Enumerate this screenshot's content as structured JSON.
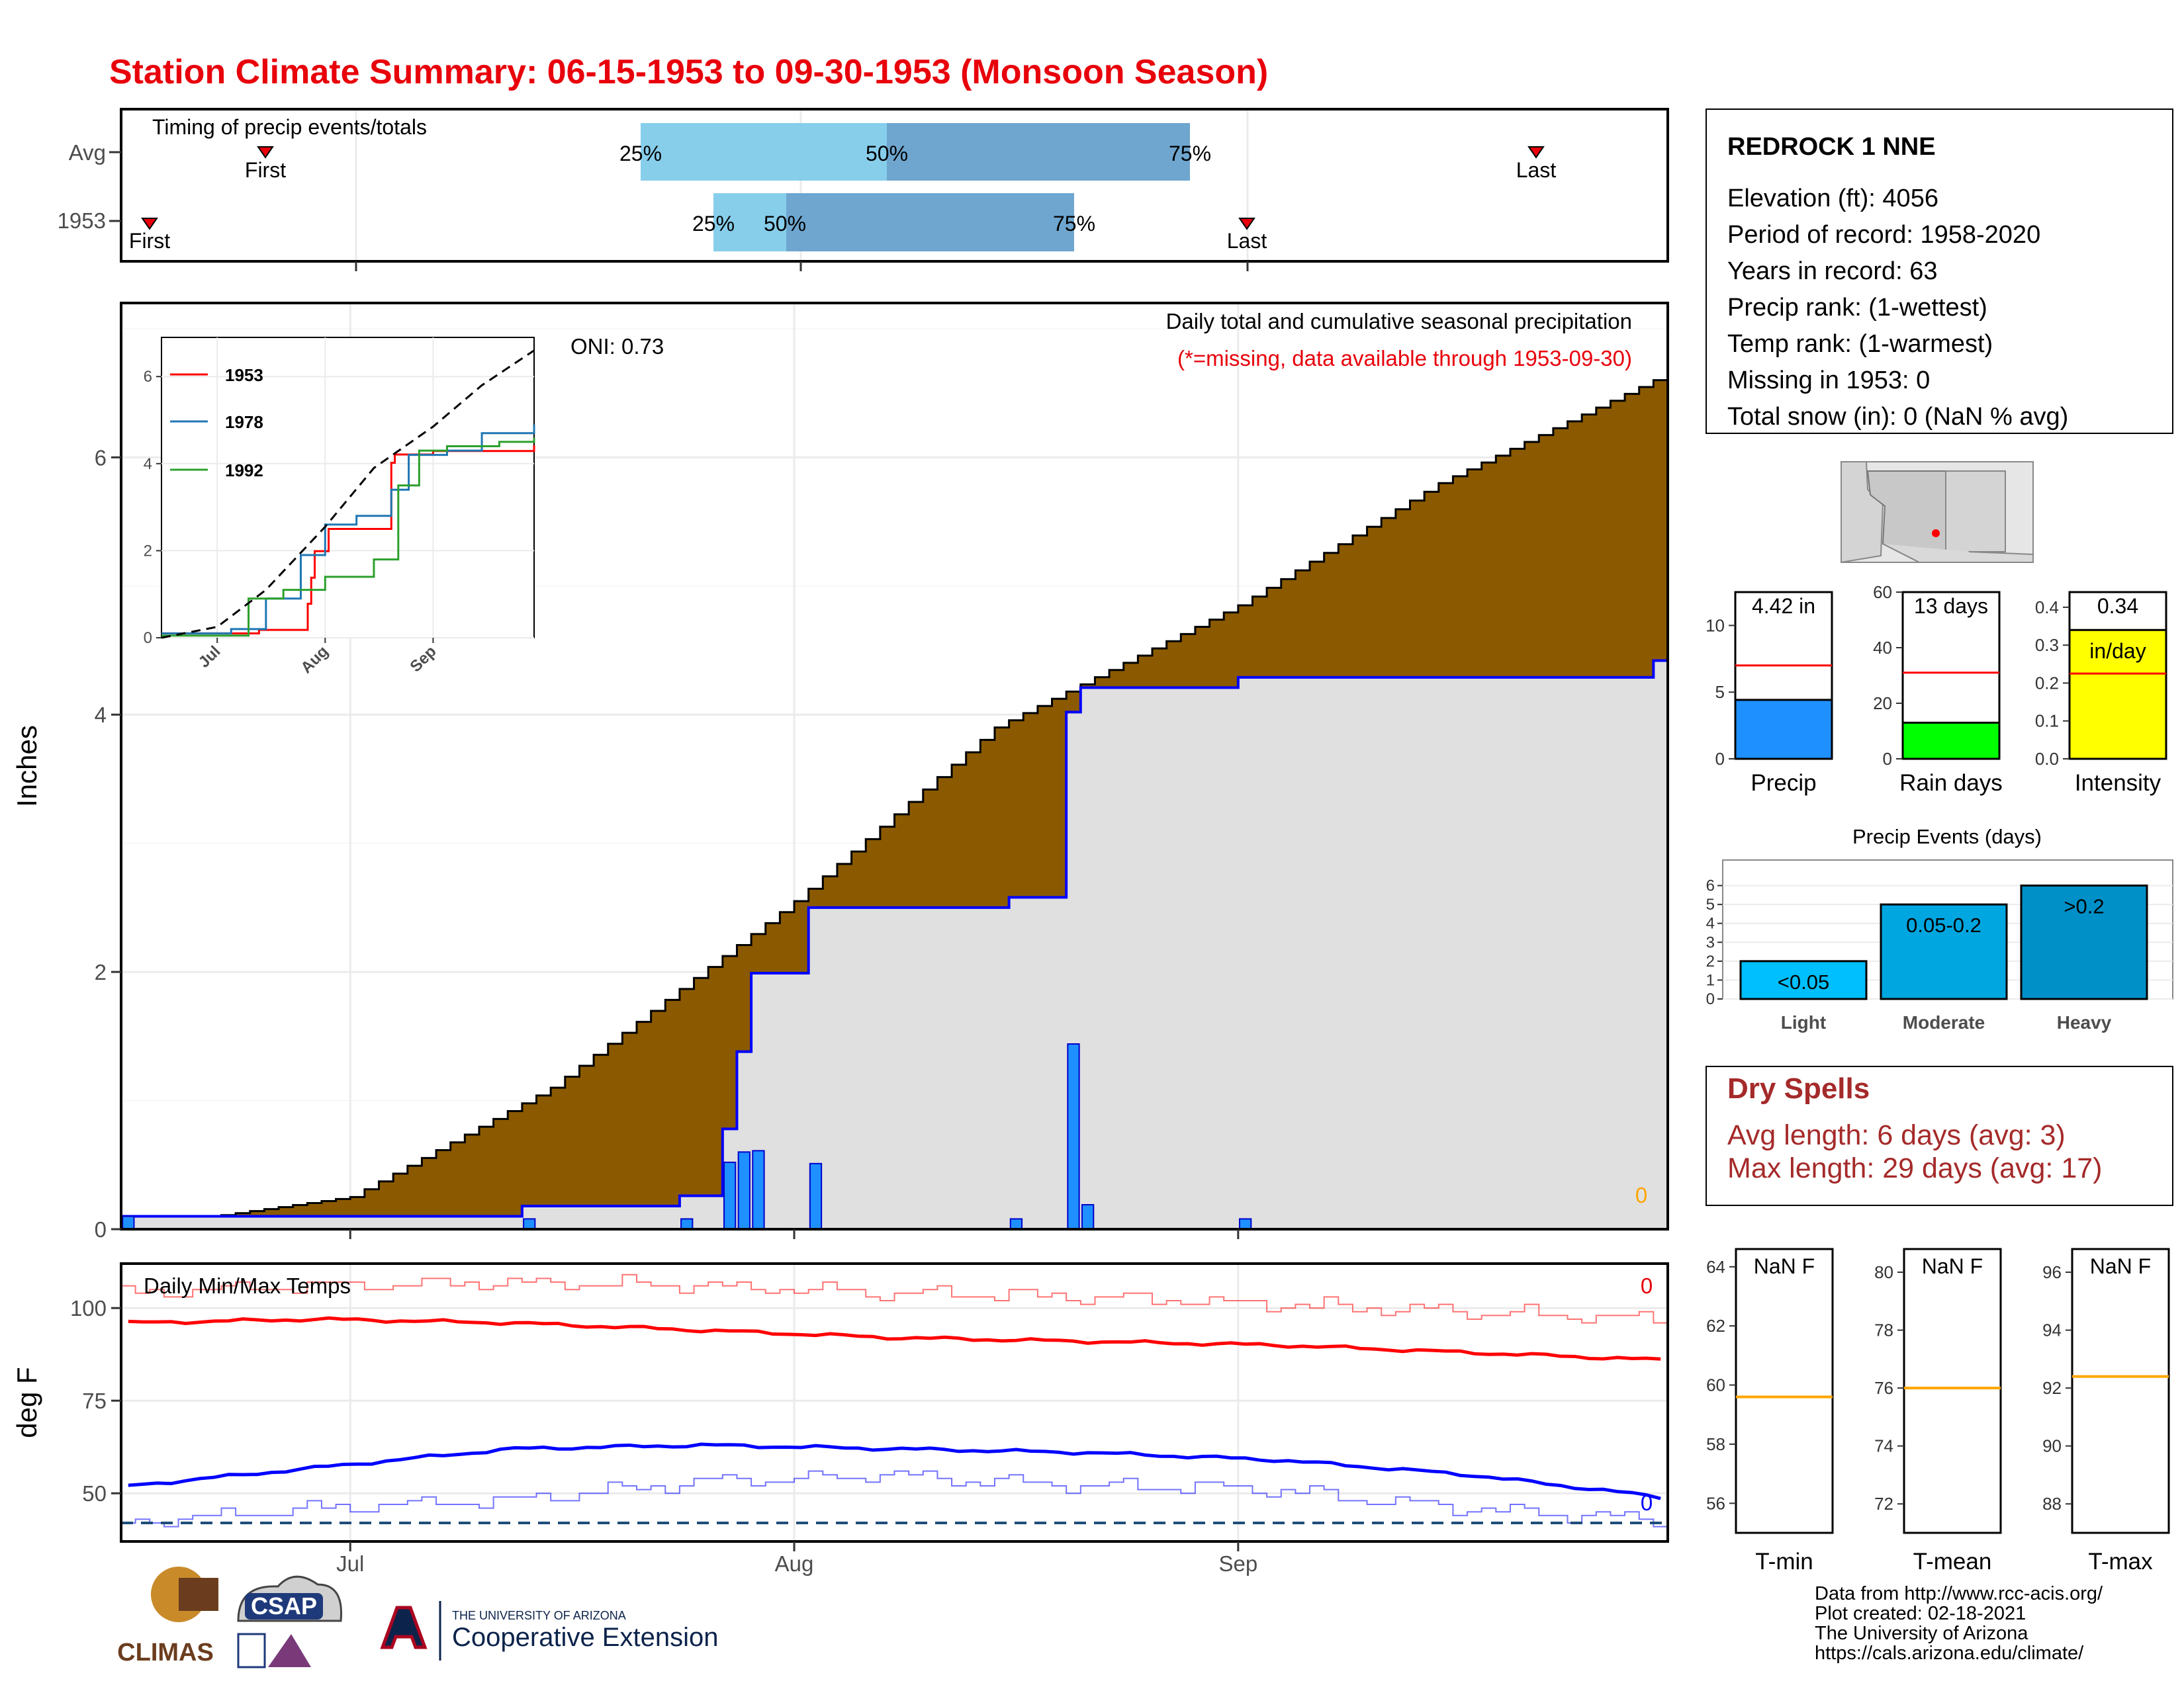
{
  "title": "Station Climate Summary: 06-15-1953 to 09-30-1953 (Monsoon Season)",
  "colors": {
    "title": "#e8000b",
    "brown": "#8b5a00",
    "gray_fill": "#e0e0e0",
    "blue_line": "#0000ff",
    "bar_blue": "#1e90ff",
    "red": "#ff0000",
    "green": "#00ff00",
    "yellow": "#ffff00",
    "light_blue": "#87ceeb",
    "mid_blue": "#6ea6cf",
    "dry_red": "#a52a2a",
    "orange": "#ffa500"
  },
  "timing": {
    "title": "Timing of precip events/totals",
    "rows": [
      {
        "label": "Avg",
        "first_label": "First",
        "last_label": "Last",
        "p25": "25%",
        "p50": "50%",
        "p75": "75%"
      },
      {
        "label": "1953",
        "first_label": "First",
        "last_label": "Last",
        "p25": "25%",
        "p50": "50%",
        "p75": "75%"
      }
    ]
  },
  "main_panel": {
    "ylabel": "Inches",
    "title": "Daily total and cumulative seasonal precipitation",
    "subtitle": "(*=missing, data available through 1953-09-30)",
    "oni": "ONI: 0.73",
    "missing_count": "0",
    "y_ticks": [
      "0",
      "2",
      "4",
      "6"
    ]
  },
  "inset": {
    "legend": [
      "1953",
      "1978",
      "1992"
    ],
    "y_ticks": [
      "0",
      "2",
      "4",
      "6"
    ],
    "x_ticks": [
      "Jul",
      "Aug",
      "Sep"
    ]
  },
  "temp_panel": {
    "ylabel": "deg F",
    "title": "Daily Min/Max Temps",
    "max_missing": "0",
    "min_missing": "0",
    "y_ticks": [
      "50",
      "75",
      "100"
    ],
    "x_ticks": [
      "Jul",
      "Aug",
      "Sep"
    ]
  },
  "station": {
    "name": "REDROCK 1 NNE",
    "elevation": "Elevation (ft): 4056",
    "period": "Period of record: 1958-2020",
    "years": "Years in record: 63",
    "precip_rank": "Precip rank:  (1-wettest)",
    "temp_rank": "Temp rank:  (1-warmest)",
    "missing": "Missing in 1953: 0",
    "snow": "Total snow (in): 0 (NaN % avg)"
  },
  "summary_bars": {
    "precip": {
      "label": "Precip",
      "value_label": "4.42 in",
      "value": 4.42,
      "avg": 7.0,
      "ticks": [
        "0",
        "5",
        "10"
      ]
    },
    "rain_days": {
      "label": "Rain days",
      "value_label": "13 days",
      "value": 13,
      "avg": 31,
      "ticks": [
        "0",
        "20",
        "40",
        "60"
      ]
    },
    "intensity": {
      "label": "Intensity",
      "value_label": "0.34",
      "unit_label": "in/day",
      "value": 0.34,
      "avg": 0.225,
      "ticks": [
        "0.0",
        "0.1",
        "0.2",
        "0.3",
        "0.4"
      ]
    }
  },
  "events": {
    "title": "Precip Events (days)",
    "categories": [
      "Light",
      "Moderate",
      "Heavy"
    ],
    "bar_labels": [
      "<0.05",
      "0.05-0.2",
      ">0.2"
    ],
    "values": [
      2,
      5,
      6
    ],
    "y_ticks": [
      "0",
      "1",
      "2",
      "3",
      "4",
      "5",
      "6"
    ]
  },
  "dry_spells": {
    "title": "Dry Spells",
    "avg": "Avg length: 6 days (avg: 3)",
    "max": "Max length: 29 days (avg: 17)"
  },
  "temp_bars": {
    "tmin": {
      "label": "T-min",
      "value_label": "NaN F",
      "avg": 59.6,
      "ticks": [
        "56",
        "58",
        "60",
        "62",
        "64"
      ]
    },
    "tmean": {
      "label": "T-mean",
      "value_label": "NaN F",
      "avg": 76.0,
      "ticks": [
        "72",
        "74",
        "76",
        "78",
        "80"
      ]
    },
    "tmax": {
      "label": "T-max",
      "value_label": "NaN F",
      "avg": 92.4,
      "ticks": [
        "88",
        "90",
        "92",
        "94",
        "96"
      ]
    }
  },
  "footer": {
    "line1": "Data from http://www.rcc-acis.org/",
    "line2": "Plot created: 02-18-2021",
    "line3": "The University of Arizona",
    "line4": "https://cals.arizona.edu/climate/"
  },
  "logos": {
    "climas": "CLIMAS",
    "csap": "CSAP",
    "ua_small": "THE UNIVERSITY OF ARIZONA",
    "ua_big": "Cooperative Extension"
  },
  "chart_data": {
    "type": "area",
    "xlabel": "",
    "ylabel": "Inches",
    "x_range": [
      "1953-06-15",
      "1953-09-30"
    ],
    "ylim": [
      0,
      7.2
    ],
    "daily_precip": [
      {
        "date": "1953-06-15",
        "value": 0.1
      },
      {
        "date": "1953-07-13",
        "value": 0.08
      },
      {
        "date": "1953-07-24",
        "value": 0.08
      },
      {
        "date": "1953-07-27",
        "value": 0.52
      },
      {
        "date": "1953-07-28",
        "value": 0.6
      },
      {
        "date": "1953-07-29",
        "value": 0.61
      },
      {
        "date": "1953-08-02",
        "value": 0.51
      },
      {
        "date": "1953-08-16",
        "value": 0.08
      },
      {
        "date": "1953-08-20",
        "value": 1.44
      },
      {
        "date": "1953-08-21",
        "value": 0.19
      },
      {
        "date": "1953-09-01",
        "value": 0.08
      }
    ],
    "series": [
      {
        "name": "1953",
        "type": "step",
        "x": [
          "06-15",
          "07-13",
          "07-24",
          "07-27",
          "07-28",
          "07-29",
          "08-02",
          "08-16",
          "08-20",
          "08-21",
          "09-01",
          "09-30"
        ],
        "values": [
          0.1,
          0.18,
          0.26,
          0.78,
          1.38,
          1.99,
          2.5,
          2.58,
          4.02,
          4.21,
          4.29,
          4.42
        ]
      },
      {
        "name": "Avg cumulative",
        "type": "step",
        "x": [
          "06-15",
          "07-01",
          "07-15",
          "08-01",
          "08-15",
          "09-01",
          "09-15",
          "09-30"
        ],
        "values": [
          0.0,
          0.25,
          1.1,
          2.55,
          3.9,
          4.85,
          5.8,
          6.6
        ]
      }
    ],
    "temps": {
      "avg_max": [
        96,
        97,
        96,
        94,
        92,
        91,
        90,
        88,
        86
      ],
      "avg_min": [
        52,
        57,
        62,
        63,
        62,
        61,
        59,
        55,
        49
      ],
      "record_max": [
        104,
        106,
        107,
        106,
        104,
        103,
        101,
        99,
        97
      ],
      "record_min": [
        42,
        46,
        48,
        53,
        55,
        52,
        51,
        46,
        43
      ],
      "ylim": [
        37,
        112
      ]
    },
    "inset": {
      "x_range": [
        "06-15",
        "09-30"
      ],
      "ylim": [
        0,
        6.6
      ],
      "series": [
        {
          "name": "1953",
          "x": [
            "06-15",
            "07-13",
            "07-27",
            "07-28",
            "07-29",
            "08-02",
            "08-20",
            "08-21",
            "09-01",
            "09-30"
          ],
          "values": [
            0.1,
            0.18,
            0.78,
            1.38,
            1.99,
            2.5,
            4.02,
            4.21,
            4.29,
            4.42
          ]
        },
        {
          "name": "1978",
          "x": [
            "06-15",
            "07-05",
            "07-15",
            "07-25",
            "08-01",
            "08-10",
            "08-20",
            "08-25",
            "09-05",
            "09-15",
            "09-30"
          ],
          "values": [
            0.1,
            0.2,
            0.9,
            1.9,
            2.6,
            2.8,
            3.4,
            4.2,
            4.3,
            4.7,
            4.9
          ]
        },
        {
          "name": "1992",
          "x": [
            "06-15",
            "07-10",
            "07-20",
            "08-01",
            "08-15",
            "08-22",
            "08-28",
            "09-05",
            "09-20",
            "09-30"
          ],
          "values": [
            0.05,
            0.9,
            1.1,
            1.4,
            1.8,
            3.5,
            4.3,
            4.4,
            4.5,
            4.6
          ]
        },
        {
          "name": "Avg",
          "x": [
            "06-15",
            "07-01",
            "07-15",
            "08-01",
            "08-15",
            "09-01",
            "09-15",
            "09-30"
          ],
          "values": [
            0.0,
            0.25,
            1.1,
            2.55,
            3.9,
            4.85,
            5.8,
            6.6
          ]
        }
      ]
    }
  }
}
